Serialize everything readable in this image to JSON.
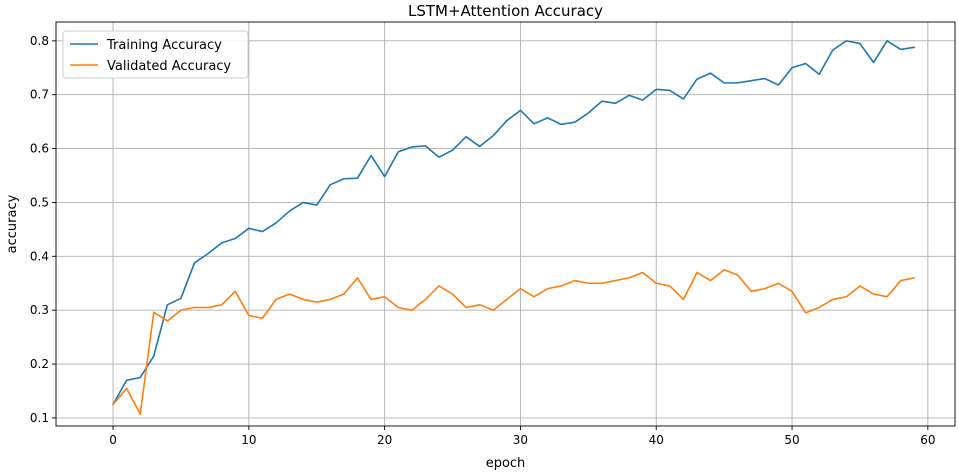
{
  "chart_data": {
    "type": "line",
    "title": "LSTM+Attention Accuracy",
    "xlabel": "epoch",
    "ylabel": "accuracy",
    "xlim": [
      -4.2,
      62.0
    ],
    "ylim": [
      0.085,
      0.835
    ],
    "xticks": [
      0,
      10,
      20,
      30,
      40,
      50,
      60
    ],
    "yticks": [
      0.1,
      0.2,
      0.3,
      0.4,
      0.5,
      0.6,
      0.7,
      0.8
    ],
    "grid": true,
    "legend_position": "upper-left",
    "series": [
      {
        "name": "Training Accuracy",
        "color": "#1f77b4",
        "x": [
          0,
          1,
          2,
          3,
          4,
          5,
          6,
          7,
          8,
          9,
          10,
          11,
          12,
          13,
          14,
          15,
          16,
          17,
          18,
          19,
          20,
          21,
          22,
          23,
          24,
          25,
          26,
          27,
          28,
          29,
          30,
          31,
          32,
          33,
          34,
          35,
          36,
          37,
          38,
          39,
          40,
          41,
          42,
          43,
          44,
          45,
          46,
          47,
          48,
          49,
          50,
          51,
          52,
          53,
          54,
          55,
          56,
          57,
          58,
          59
        ],
        "values": [
          0.125,
          0.17,
          0.175,
          0.215,
          0.31,
          0.322,
          0.388,
          0.405,
          0.425,
          0.433,
          0.452,
          0.446,
          0.462,
          0.484,
          0.5,
          0.495,
          0.533,
          0.544,
          0.545,
          0.587,
          0.548,
          0.594,
          0.603,
          0.605,
          0.584,
          0.597,
          0.622,
          0.604,
          0.624,
          0.652,
          0.671,
          0.646,
          0.657,
          0.645,
          0.649,
          0.666,
          0.688,
          0.684,
          0.699,
          0.69,
          0.71,
          0.708,
          0.692,
          0.729,
          0.74,
          0.722,
          0.722,
          0.726,
          0.73,
          0.718,
          0.75,
          0.758,
          0.738,
          0.783,
          0.8,
          0.795,
          0.76,
          0.8,
          0.784,
          0.788
        ]
      },
      {
        "name": "Validated Accuracy",
        "color": "#ff7f0e",
        "x": [
          0,
          1,
          2,
          3,
          4,
          5,
          6,
          7,
          8,
          9,
          10,
          11,
          12,
          13,
          14,
          15,
          16,
          17,
          18,
          19,
          20,
          21,
          22,
          23,
          24,
          25,
          26,
          27,
          28,
          29,
          30,
          31,
          32,
          33,
          34,
          35,
          36,
          37,
          38,
          39,
          40,
          41,
          42,
          43,
          44,
          45,
          46,
          47,
          48,
          49,
          50,
          51,
          52,
          53,
          54,
          55,
          56,
          57,
          58,
          59
        ],
        "values": [
          0.125,
          0.155,
          0.107,
          0.296,
          0.28,
          0.3,
          0.305,
          0.305,
          0.31,
          0.335,
          0.29,
          0.285,
          0.32,
          0.33,
          0.32,
          0.315,
          0.32,
          0.33,
          0.36,
          0.32,
          0.325,
          0.305,
          0.3,
          0.32,
          0.345,
          0.33,
          0.305,
          0.31,
          0.3,
          0.32,
          0.34,
          0.325,
          0.34,
          0.345,
          0.355,
          0.35,
          0.35,
          0.355,
          0.36,
          0.37,
          0.35,
          0.345,
          0.32,
          0.37,
          0.355,
          0.375,
          0.365,
          0.335,
          0.34,
          0.35,
          0.335,
          0.295,
          0.305,
          0.32,
          0.325,
          0.345,
          0.33,
          0.325,
          0.355,
          0.36
        ]
      }
    ]
  }
}
